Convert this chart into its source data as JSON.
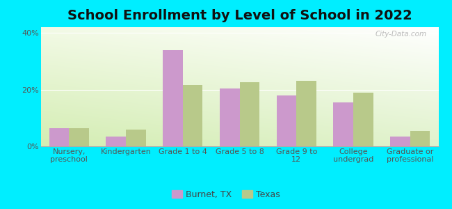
{
  "title": "School Enrollment by Level of School in 2022",
  "categories": [
    "Nursery,\npreschool",
    "Kindergarten",
    "Grade 1 to 4",
    "Grade 5 to 8",
    "Grade 9 to\n12",
    "College\nundergrad",
    "Graduate or\nprofessional"
  ],
  "burnet_values": [
    6.5,
    3.5,
    34.0,
    20.5,
    18.0,
    15.5,
    3.5
  ],
  "texas_values": [
    6.5,
    6.0,
    21.5,
    22.5,
    23.0,
    19.0,
    5.5
  ],
  "burnet_color": "#cc99cc",
  "texas_color": "#b8c98a",
  "background_color": "#00EEFF",
  "watermark": "City-Data.com",
  "legend_burnet": "Burnet, TX",
  "legend_texas": "Texas",
  "yticks": [
    0,
    20,
    40
  ],
  "ylabel_ticks": [
    "0%",
    "20%",
    "40%"
  ],
  "ylim": [
    0,
    42
  ],
  "title_fontsize": 14,
  "tick_fontsize": 8
}
